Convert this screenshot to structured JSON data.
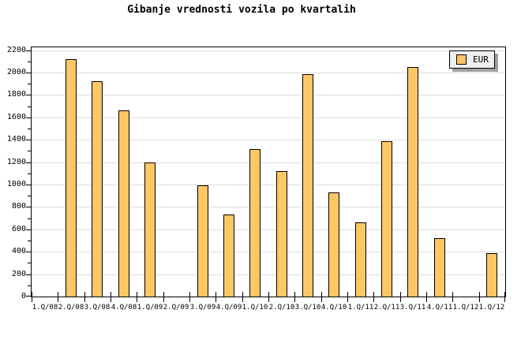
{
  "title": "Gibanje vrednosti vozila po kvartalih",
  "legend": {
    "label": "EUR"
  },
  "colors": {
    "bar_fill": "#FDC766",
    "bar_border": "#000000",
    "grid": "#DCDCDC",
    "axis": "#000000",
    "legend_bg": "#EFEFEF",
    "legend_shadow": "#A0A0A0",
    "background": "#FFFFFF"
  },
  "chart_data": {
    "type": "bar",
    "title": "Gibanje vrednosti vozila po kvartalih",
    "categories": [
      "1.Q/08",
      "2.Q/08",
      "3.Q/08",
      "4.Q/08",
      "1.Q/09",
      "2.Q/09",
      "3.Q/09",
      "4.Q/09",
      "1.Q/10",
      "2.Q/10",
      "3.Q/10",
      "4.Q/10",
      "1.Q/11",
      "2.Q/11",
      "3.Q/11",
      "4.Q/11",
      "1.Q/12",
      "1.Q/12"
    ],
    "series": [
      {
        "name": "EUR",
        "values": [
          null,
          2120,
          1920,
          1660,
          1200,
          null,
          990,
          730,
          1320,
          1120,
          1985,
          930,
          660,
          1390,
          2050,
          520,
          null,
          390
        ]
      }
    ],
    "xlabel": "",
    "ylabel": "",
    "ylim": [
      0,
      2200
    ],
    "ytick_step": 200,
    "ytick_labels": [
      "0",
      "200",
      "400",
      "600",
      "800",
      "1000",
      "1200",
      "1400",
      "1600",
      "1800",
      "2000",
      "2200"
    ],
    "minor_ytick_step": 100,
    "grid": "horizontal",
    "legend_position": "top-right",
    "legend_entries": [
      "EUR"
    ]
  }
}
